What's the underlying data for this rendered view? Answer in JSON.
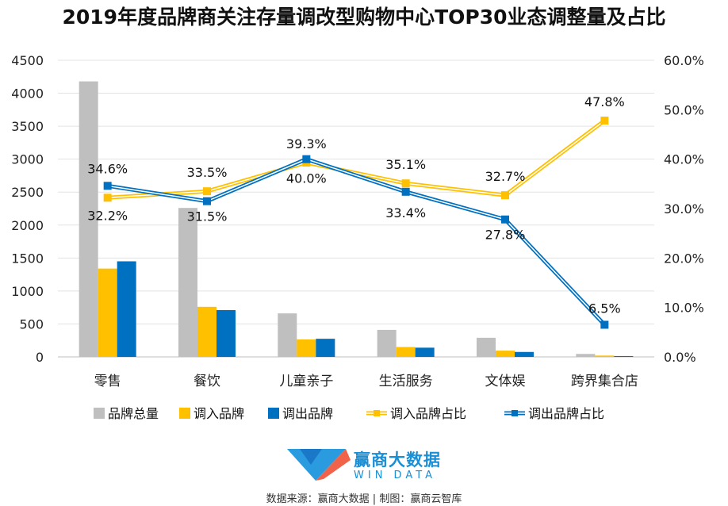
{
  "chart_data": {
    "type": "bar+line",
    "title": "2019年度品牌商关注存量调改型购物中心TOP30业态调整量及占比",
    "categories": [
      "零售",
      "餐饮",
      "儿童亲子",
      "生活服务",
      "文体娱",
      "跨界集合店"
    ],
    "left_axis": {
      "min": 0,
      "max": 4500,
      "step": 500,
      "ticks": [
        "0",
        "500",
        "1000",
        "1500",
        "2000",
        "2500",
        "3000",
        "3500",
        "4000",
        "4500"
      ]
    },
    "right_axis": {
      "min": 0,
      "max": 60,
      "step": 10,
      "ticks": [
        "0.0%",
        "10.0%",
        "20.0%",
        "30.0%",
        "40.0%",
        "50.0%",
        "60.0%"
      ]
    },
    "bar_series": [
      {
        "name": "品牌总量",
        "color": "#bfbfbf",
        "values": [
          4180,
          2260,
          660,
          410,
          290,
          45
        ]
      },
      {
        "name": "调入品牌",
        "color": "#ffc000",
        "values": [
          1340,
          760,
          265,
          150,
          95,
          20
        ]
      },
      {
        "name": "调出品牌",
        "color": "#0070c0",
        "values": [
          1450,
          710,
          275,
          140,
          75,
          12
        ]
      }
    ],
    "line_series": [
      {
        "name": "调入品牌占比",
        "color": "#ffc000",
        "values": [
          32.2,
          33.5,
          39.3,
          35.1,
          32.7,
          47.8
        ],
        "labels": [
          "32.2%",
          "33.5%",
          "39.3%",
          "35.1%",
          "32.7%",
          "47.8%"
        ]
      },
      {
        "name": "调出品牌占比",
        "color": "#0070c0",
        "values": [
          34.6,
          31.5,
          40.0,
          33.4,
          27.8,
          6.5
        ],
        "labels": [
          "34.6%",
          "31.5%",
          "40.0%",
          "33.4%",
          "27.8%",
          "6.5%"
        ]
      }
    ],
    "legend": [
      "品牌总量",
      "调入品牌",
      "调出品牌",
      "调入品牌占比",
      "调出品牌占比"
    ],
    "legend_position": "bottom"
  },
  "branding": {
    "logo_cn": "赢商大数据",
    "logo_en": "WIN DATA",
    "source": "数据来源：赢商大数据 | 制图：赢商云智库"
  }
}
